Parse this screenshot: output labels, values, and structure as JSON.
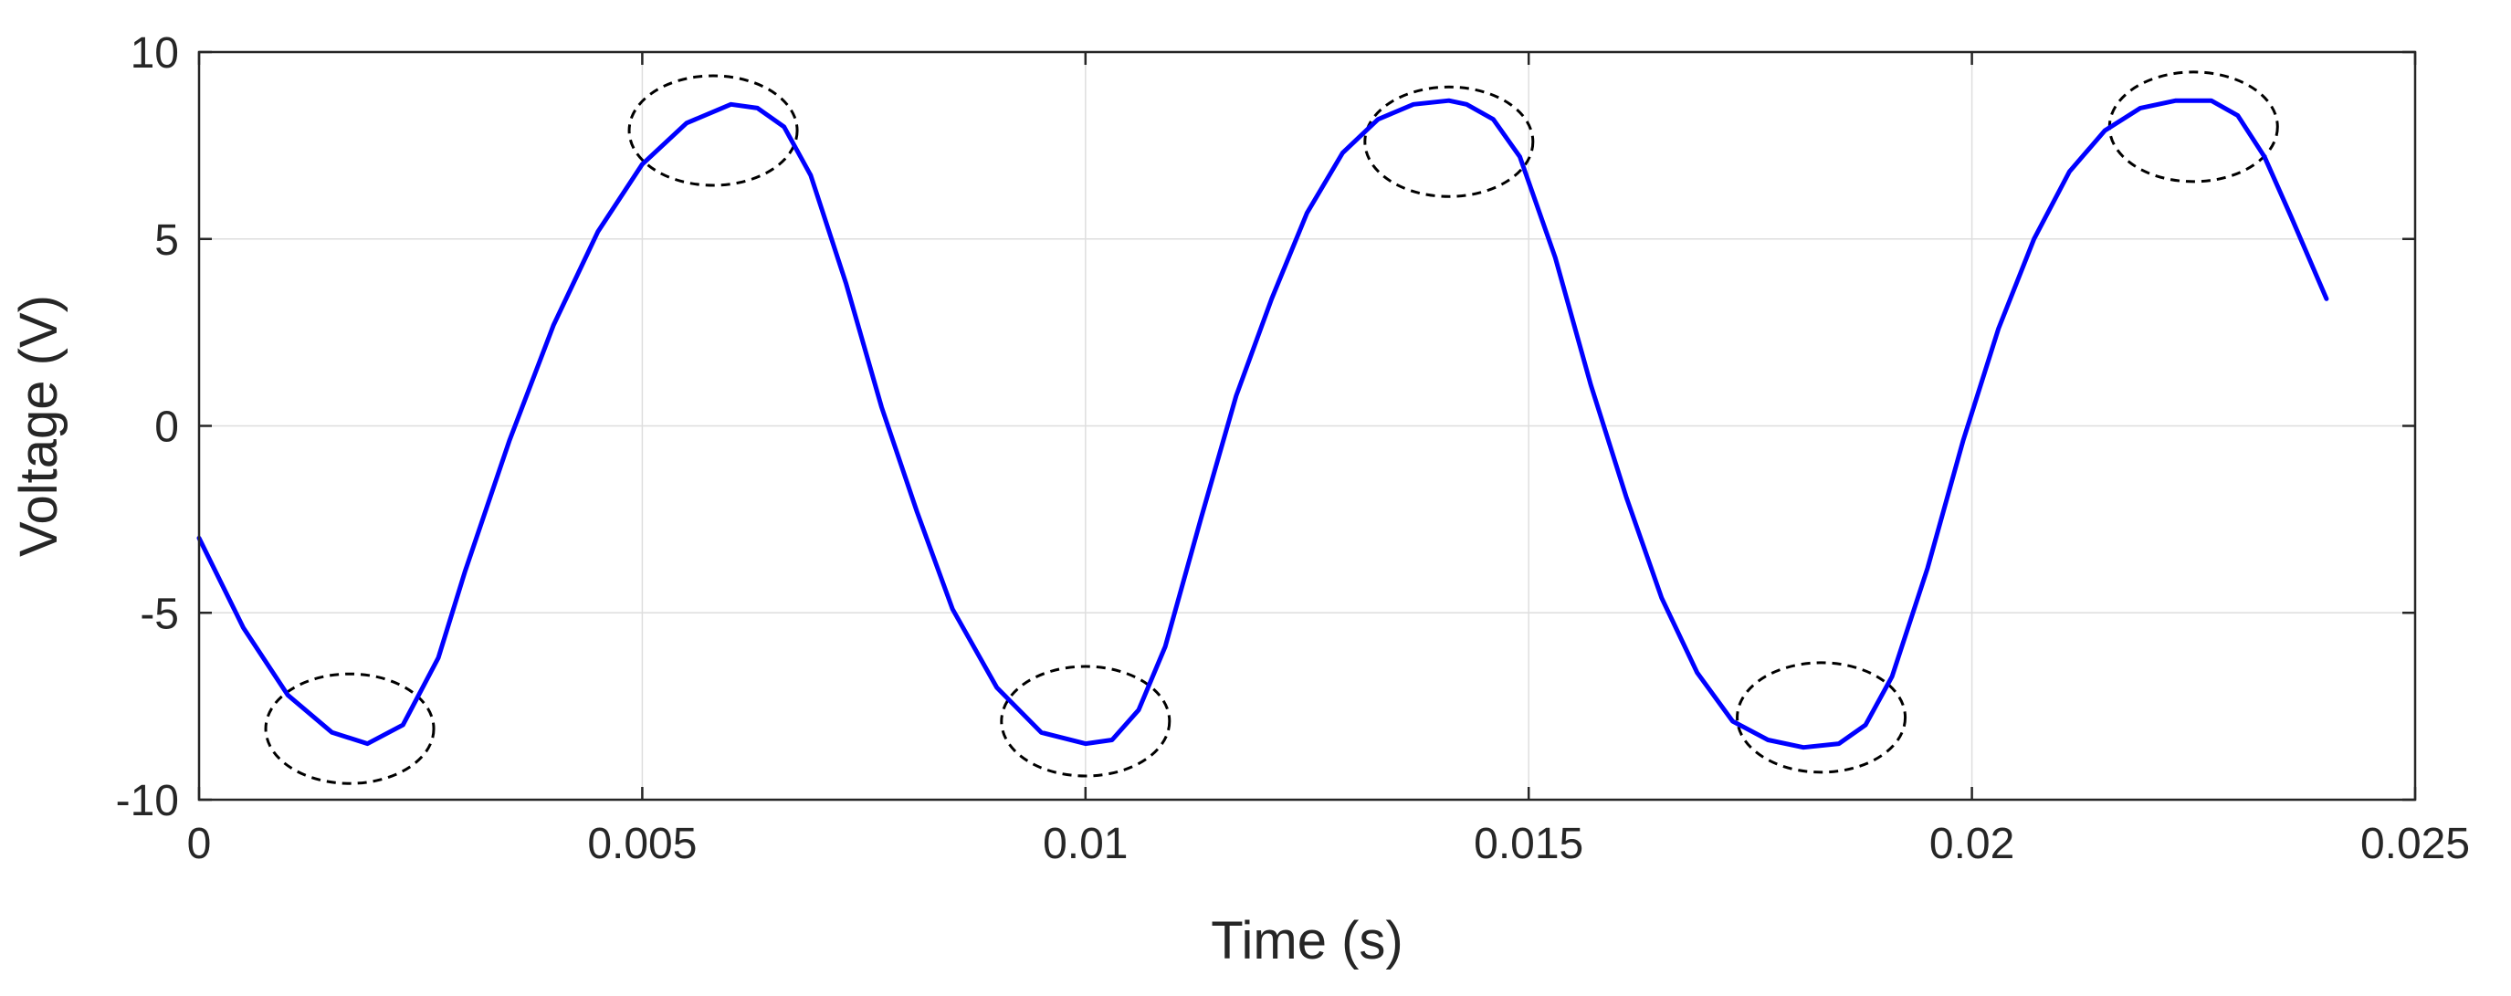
{
  "chart_data": {
    "type": "line",
    "xlabel": "Time (s)",
    "ylabel": "Voltage (V)",
    "xlim": [
      0,
      0.025
    ],
    "ylim": [
      -10,
      10
    ],
    "xticks": [
      0,
      0.005,
      0.01,
      0.015,
      0.02,
      0.025
    ],
    "xtick_labels": [
      "0",
      "0.005",
      "0.01",
      "0.015",
      "0.02",
      "0.025"
    ],
    "yticks": [
      -10,
      -5,
      0,
      5,
      10
    ],
    "ytick_labels": [
      "-10",
      "-5",
      "0",
      "5",
      "10"
    ],
    "grid": true,
    "series": [
      {
        "color": "#0000ff",
        "x": [
          0,
          0.0005,
          0.001,
          0.0015,
          0.0019,
          0.0023,
          0.0027,
          0.003,
          0.0035,
          0.004,
          0.0045,
          0.005,
          0.0055,
          0.006,
          0.0063,
          0.0066,
          0.0069,
          0.0073,
          0.0077,
          0.0081,
          0.0085,
          0.009,
          0.0095,
          0.01,
          0.0103,
          0.0106,
          0.0109,
          0.0113,
          0.0117,
          0.0121,
          0.0125,
          0.0129,
          0.0133,
          0.0137,
          0.0141,
          0.0143,
          0.0146,
          0.0149,
          0.0153,
          0.0157,
          0.0161,
          0.0165,
          0.0169,
          0.0173,
          0.0177,
          0.0181,
          0.0185,
          0.0188,
          0.0191,
          0.0195,
          0.0199,
          0.0203,
          0.0207,
          0.0211,
          0.0215,
          0.0219,
          0.0223,
          0.0227,
          0.023,
          0.0233,
          0.0236,
          0.024
        ],
        "y": [
          -3.0,
          -5.4,
          -7.2,
          -8.2,
          -8.5,
          -8.0,
          -6.2,
          -3.9,
          -0.4,
          2.7,
          5.2,
          7.0,
          8.1,
          8.6,
          8.5,
          8.0,
          6.7,
          3.8,
          0.5,
          -2.3,
          -4.9,
          -7.0,
          -8.2,
          -8.5,
          -8.4,
          -7.6,
          -5.9,
          -2.5,
          0.8,
          3.4,
          5.7,
          7.3,
          8.2,
          8.6,
          8.7,
          8.6,
          8.2,
          7.2,
          4.5,
          1.1,
          -1.9,
          -4.6,
          -6.6,
          -7.9,
          -8.4,
          -8.6,
          -8.5,
          -8.0,
          -6.7,
          -3.8,
          -0.4,
          2.6,
          5.0,
          6.8,
          7.9,
          8.5,
          8.7,
          8.7,
          8.3,
          7.2,
          5.6,
          3.4
        ]
      }
    ],
    "annotations": {
      "shape": "dashed-ellipse",
      "color": "#000000",
      "centers": [
        [
          0.0017,
          -8.1
        ],
        [
          0.0058,
          7.9
        ],
        [
          0.01,
          -7.9
        ],
        [
          0.0141,
          7.6
        ],
        [
          0.0183,
          -7.8
        ],
        [
          0.0225,
          8.0
        ]
      ]
    }
  }
}
